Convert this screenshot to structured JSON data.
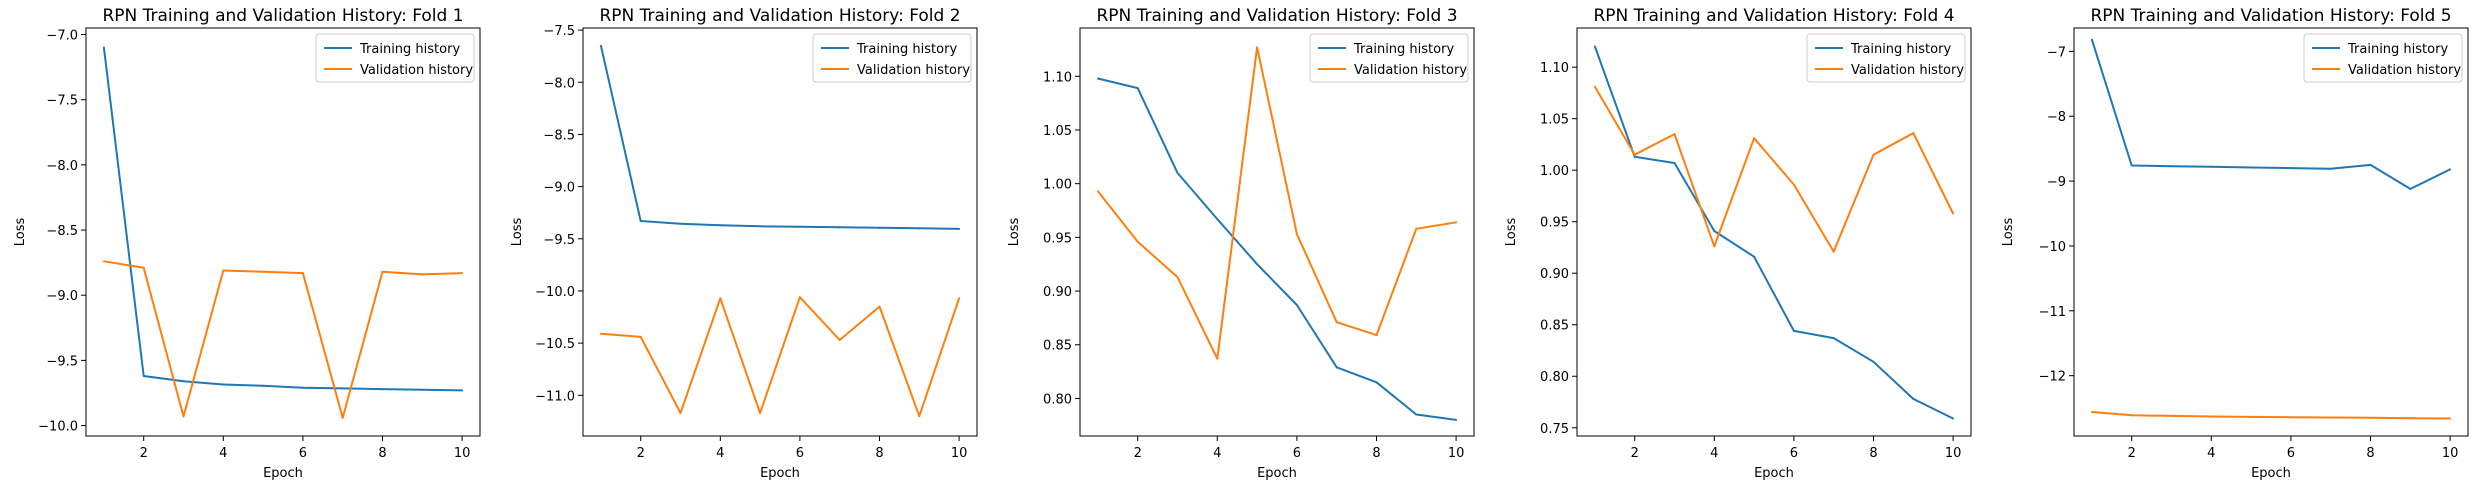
{
  "chart_data": [
    {
      "type": "line",
      "title": "RPN Training and Validation History: Fold 1",
      "xlabel": "Epoch",
      "ylabel": "Loss",
      "xlim": [
        0.55,
        10.45
      ],
      "ylim": [
        -10.08,
        -6.95
      ],
      "xticks": [
        2,
        4,
        6,
        8,
        10
      ],
      "xtick_labels": [
        "2",
        "4",
        "6",
        "8",
        "10"
      ],
      "yticks": [
        -10.0,
        -9.5,
        -9.0,
        -8.5,
        -8.0,
        -7.5,
        -7.0
      ],
      "ytick_labels": [
        "−10.0",
        "−9.5",
        "−9.0",
        "−8.5",
        "−8.0",
        "−7.5",
        "−7.0"
      ],
      "grid": false,
      "legend": "upper right",
      "x": [
        1,
        2,
        3,
        4,
        5,
        6,
        7,
        8,
        9,
        10
      ],
      "series": [
        {
          "name": "Training history",
          "color": "#1f77b4",
          "values": [
            -7.1,
            -9.62,
            -9.66,
            -9.685,
            -9.695,
            -9.71,
            -9.715,
            -9.72,
            -9.725,
            -9.73
          ]
        },
        {
          "name": "Validation history",
          "color": "#ff7f0e",
          "values": [
            -8.74,
            -8.79,
            -9.93,
            -8.81,
            -8.82,
            -8.83,
            -9.94,
            -8.82,
            -8.84,
            -8.83
          ]
        }
      ]
    },
    {
      "type": "line",
      "title": "RPN Training and Validation History: Fold 2",
      "xlabel": "Epoch",
      "ylabel": "Loss",
      "xlim": [
        0.55,
        10.45
      ],
      "ylim": [
        -11.39,
        -7.48
      ],
      "xticks": [
        2,
        4,
        6,
        8,
        10
      ],
      "xtick_labels": [
        "2",
        "4",
        "6",
        "8",
        "10"
      ],
      "yticks": [
        -11.0,
        -10.5,
        -10.0,
        -9.5,
        -9.0,
        -8.5,
        -8.0,
        -7.5
      ],
      "ytick_labels": [
        "−11.0",
        "−10.5",
        "−10.0",
        "−9.5",
        "−9.0",
        "−8.5",
        "−8.0",
        "−7.5"
      ],
      "grid": false,
      "legend": "upper right",
      "x": [
        1,
        2,
        3,
        4,
        5,
        6,
        7,
        8,
        9,
        10
      ],
      "series": [
        {
          "name": "Training history",
          "color": "#1f77b4",
          "values": [
            -7.65,
            -9.33,
            -9.355,
            -9.37,
            -9.38,
            -9.385,
            -9.39,
            -9.395,
            -9.4,
            -9.405
          ]
        },
        {
          "name": "Validation history",
          "color": "#ff7f0e",
          "values": [
            -10.41,
            -10.44,
            -11.17,
            -10.07,
            -11.17,
            -10.06,
            -10.47,
            -10.15,
            -11.2,
            -10.07
          ]
        }
      ]
    },
    {
      "type": "line",
      "title": "RPN Training and Validation History: Fold 3",
      "xlabel": "Epoch",
      "ylabel": "Loss",
      "xlim": [
        0.55,
        10.45
      ],
      "ylim": [
        0.765,
        1.145
      ],
      "xticks": [
        2,
        4,
        6,
        8,
        10
      ],
      "xtick_labels": [
        "2",
        "4",
        "6",
        "8",
        "10"
      ],
      "yticks": [
        0.8,
        0.85,
        0.9,
        0.95,
        1.0,
        1.05,
        1.1
      ],
      "ytick_labels": [
        "0.80",
        "0.85",
        "0.90",
        "0.95",
        "1.00",
        "1.05",
        "1.10"
      ],
      "grid": false,
      "legend": "upper right",
      "x": [
        1,
        2,
        3,
        4,
        5,
        6,
        7,
        8,
        9,
        10
      ],
      "series": [
        {
          "name": "Training history",
          "color": "#1f77b4",
          "values": [
            1.098,
            1.089,
            1.01,
            0.967,
            0.925,
            0.887,
            0.829,
            0.815,
            0.785,
            0.78
          ]
        },
        {
          "name": "Validation history",
          "color": "#ff7f0e",
          "values": [
            0.993,
            0.946,
            0.913,
            0.837,
            1.127,
            0.953,
            0.871,
            0.859,
            0.958,
            0.964
          ]
        }
      ]
    },
    {
      "type": "line",
      "title": "RPN Training and Validation History: Fold 4",
      "xlabel": "Epoch",
      "ylabel": "Loss",
      "xlim": [
        0.55,
        10.45
      ],
      "ylim": [
        0.742,
        1.138
      ],
      "xticks": [
        2,
        4,
        6,
        8,
        10
      ],
      "xtick_labels": [
        "2",
        "4",
        "6",
        "8",
        "10"
      ],
      "yticks": [
        0.75,
        0.8,
        0.85,
        0.9,
        0.95,
        1.0,
        1.05,
        1.1
      ],
      "ytick_labels": [
        "0.75",
        "0.80",
        "0.85",
        "0.90",
        "0.95",
        "1.00",
        "1.05",
        "1.10"
      ],
      "grid": false,
      "legend": "upper right",
      "x": [
        1,
        2,
        3,
        4,
        5,
        6,
        7,
        8,
        9,
        10
      ],
      "series": [
        {
          "name": "Training history",
          "color": "#1f77b4",
          "values": [
            1.12,
            1.013,
            1.007,
            0.941,
            0.916,
            0.844,
            0.837,
            0.814,
            0.778,
            0.759
          ]
        },
        {
          "name": "Validation history",
          "color": "#ff7f0e",
          "values": [
            1.081,
            1.015,
            1.035,
            0.926,
            1.031,
            0.986,
            0.921,
            1.015,
            1.036,
            0.958
          ]
        }
      ]
    },
    {
      "type": "line",
      "title": "RPN Training and Validation History: Fold 5",
      "xlabel": "Epoch",
      "ylabel": "Loss",
      "xlim": [
        0.55,
        10.45
      ],
      "ylim": [
        -12.93,
        -6.64
      ],
      "xticks": [
        2,
        4,
        6,
        8,
        10
      ],
      "xtick_labels": [
        "2",
        "4",
        "6",
        "8",
        "10"
      ],
      "yticks": [
        -12,
        -11,
        -10,
        -9,
        -8,
        -7
      ],
      "ytick_labels": [
        "−12",
        "−11",
        "−10",
        "−9",
        "−8",
        "−7"
      ],
      "grid": false,
      "legend": "upper right",
      "x": [
        1,
        2,
        3,
        4,
        5,
        6,
        7,
        8,
        9,
        10
      ],
      "series": [
        {
          "name": "Training history",
          "color": "#1f77b4",
          "values": [
            -6.82,
            -8.76,
            -8.77,
            -8.78,
            -8.79,
            -8.8,
            -8.81,
            -8.75,
            -9.12,
            -8.82
          ]
        },
        {
          "name": "Validation history",
          "color": "#ff7f0e",
          "values": [
            -12.56,
            -12.61,
            -12.62,
            -12.63,
            -12.635,
            -12.64,
            -12.645,
            -12.65,
            -12.655,
            -12.66
          ]
        }
      ]
    }
  ]
}
